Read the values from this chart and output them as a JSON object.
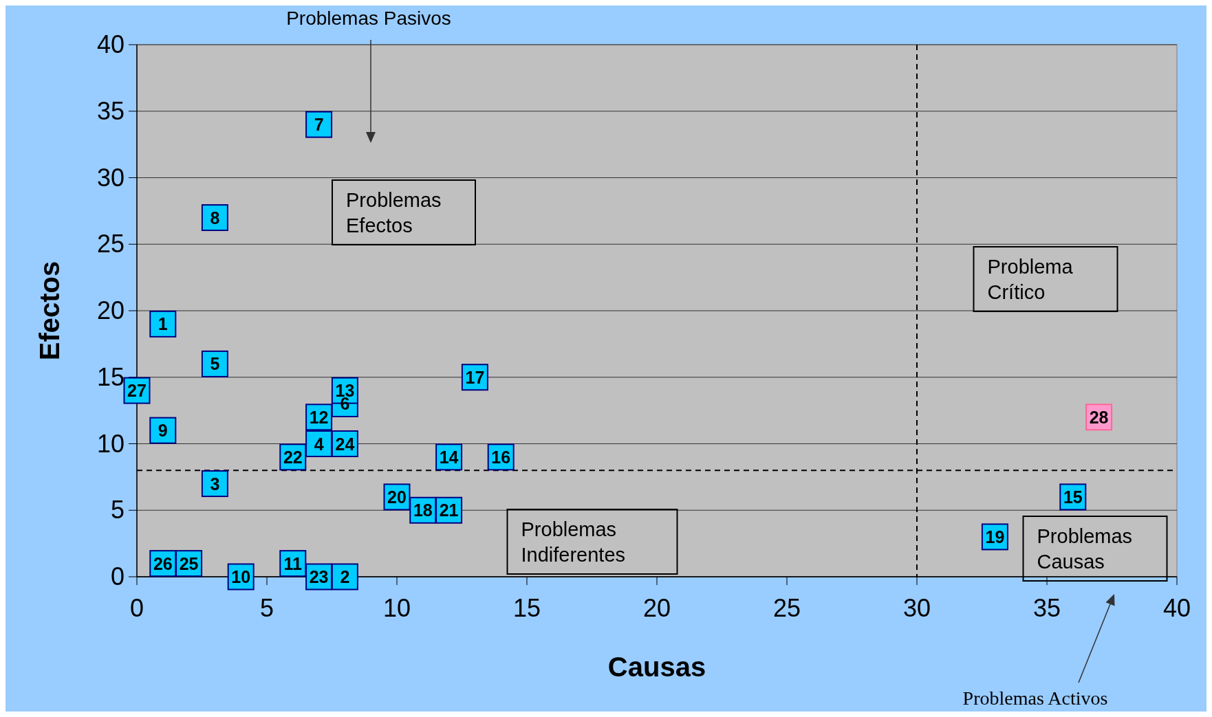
{
  "chart_data": {
    "type": "scatter",
    "xlabel": "Causas",
    "ylabel": "Efectos",
    "xlim": [
      0,
      40
    ],
    "xticks": [
      0,
      5,
      10,
      15,
      20,
      25,
      30,
      35,
      40
    ],
    "ylim": [
      0,
      40
    ],
    "yticks": [
      0,
      5,
      10,
      15,
      20,
      25,
      30,
      35,
      40
    ],
    "grid": "y",
    "marker": "square",
    "series": [
      {
        "color": "#00ccff",
        "colors": [
          "#00ccff",
          "#00ccff",
          "#00ccff",
          "#00ccff",
          "#00ccff",
          "#00ccff",
          "#00ccff",
          "#00ccff",
          "#00ccff",
          "#00ccff",
          "#00ccff",
          "#00ccff",
          "#00ccff",
          "#00ccff",
          "#00ccff",
          "#00ccff",
          "#00ccff",
          "#00ccff",
          "#00ccff",
          "#00ccff",
          "#00ccff",
          "#00ccff",
          "#00ccff",
          "#00ccff",
          "#00ccff",
          "#00ccff",
          "#00ccff",
          "#ff99cc"
        ],
        "x": [
          1,
          8,
          3,
          7,
          3,
          8,
          7,
          3,
          1,
          4,
          6,
          7,
          8,
          12,
          36,
          14,
          13,
          11,
          33,
          10,
          12,
          6,
          7,
          8,
          2,
          1,
          0,
          37
        ],
        "values": [
          19,
          0,
          7,
          10,
          16,
          13,
          34,
          27,
          11,
          0,
          1,
          12,
          14,
          9,
          6,
          9,
          15,
          5,
          3,
          6,
          5,
          9,
          0,
          10,
          1,
          1,
          14,
          12
        ]
      }
    ],
    "ref_lines": [
      {
        "axis": "x",
        "value": 30,
        "line_style": "dashed"
      },
      {
        "axis": "y",
        "value": 8,
        "line_style": "dashed"
      }
    ],
    "annotations": [
      "Problemas Efectos",
      "Problema Crítico",
      "Problemas Indiferentes",
      "Problemas Causas",
      "Problemas Pasivos",
      "Problemas Activos",
      {
        "text": "1",
        "x": 1,
        "y": 19
      },
      {
        "text": "2",
        "x": 8,
        "y": 0
      },
      {
        "text": "3",
        "x": 3,
        "y": 7
      },
      {
        "text": "4",
        "x": 7,
        "y": 10
      },
      {
        "text": "5",
        "x": 3,
        "y": 16
      },
      {
        "text": "6",
        "x": 8,
        "y": 13
      },
      {
        "text": "7",
        "x": 7,
        "y": 34
      },
      {
        "text": "8",
        "x": 3,
        "y": 27
      },
      {
        "text": "9",
        "x": 1,
        "y": 11
      },
      {
        "text": "10",
        "x": 4,
        "y": 0
      },
      {
        "text": "11",
        "x": 6,
        "y": 1
      },
      {
        "text": "12",
        "x": 7,
        "y": 12
      },
      {
        "text": "13",
        "x": 8,
        "y": 14
      },
      {
        "text": "14",
        "x": 12,
        "y": 9
      },
      {
        "text": "15",
        "x": 36,
        "y": 6
      },
      {
        "text": "16",
        "x": 14,
        "y": 9
      },
      {
        "text": "17",
        "x": 13,
        "y": 15
      },
      {
        "text": "18",
        "x": 11,
        "y": 5
      },
      {
        "text": "19",
        "x": 33,
        "y": 3
      },
      {
        "text": "20",
        "x": 10,
        "y": 6
      },
      {
        "text": "21",
        "x": 12,
        "y": 5
      },
      {
        "text": "22",
        "x": 6,
        "y": 9
      },
      {
        "text": "23",
        "x": 7,
        "y": 0
      },
      {
        "text": "24",
        "x": 8,
        "y": 10
      },
      {
        "text": "25",
        "x": 2,
        "y": 1
      },
      {
        "text": "26",
        "x": 1,
        "y": 1
      },
      {
        "text": "27",
        "x": 0,
        "y": 14
      },
      {
        "text": "28",
        "x": 37,
        "y": 12
      }
    ]
  }
}
